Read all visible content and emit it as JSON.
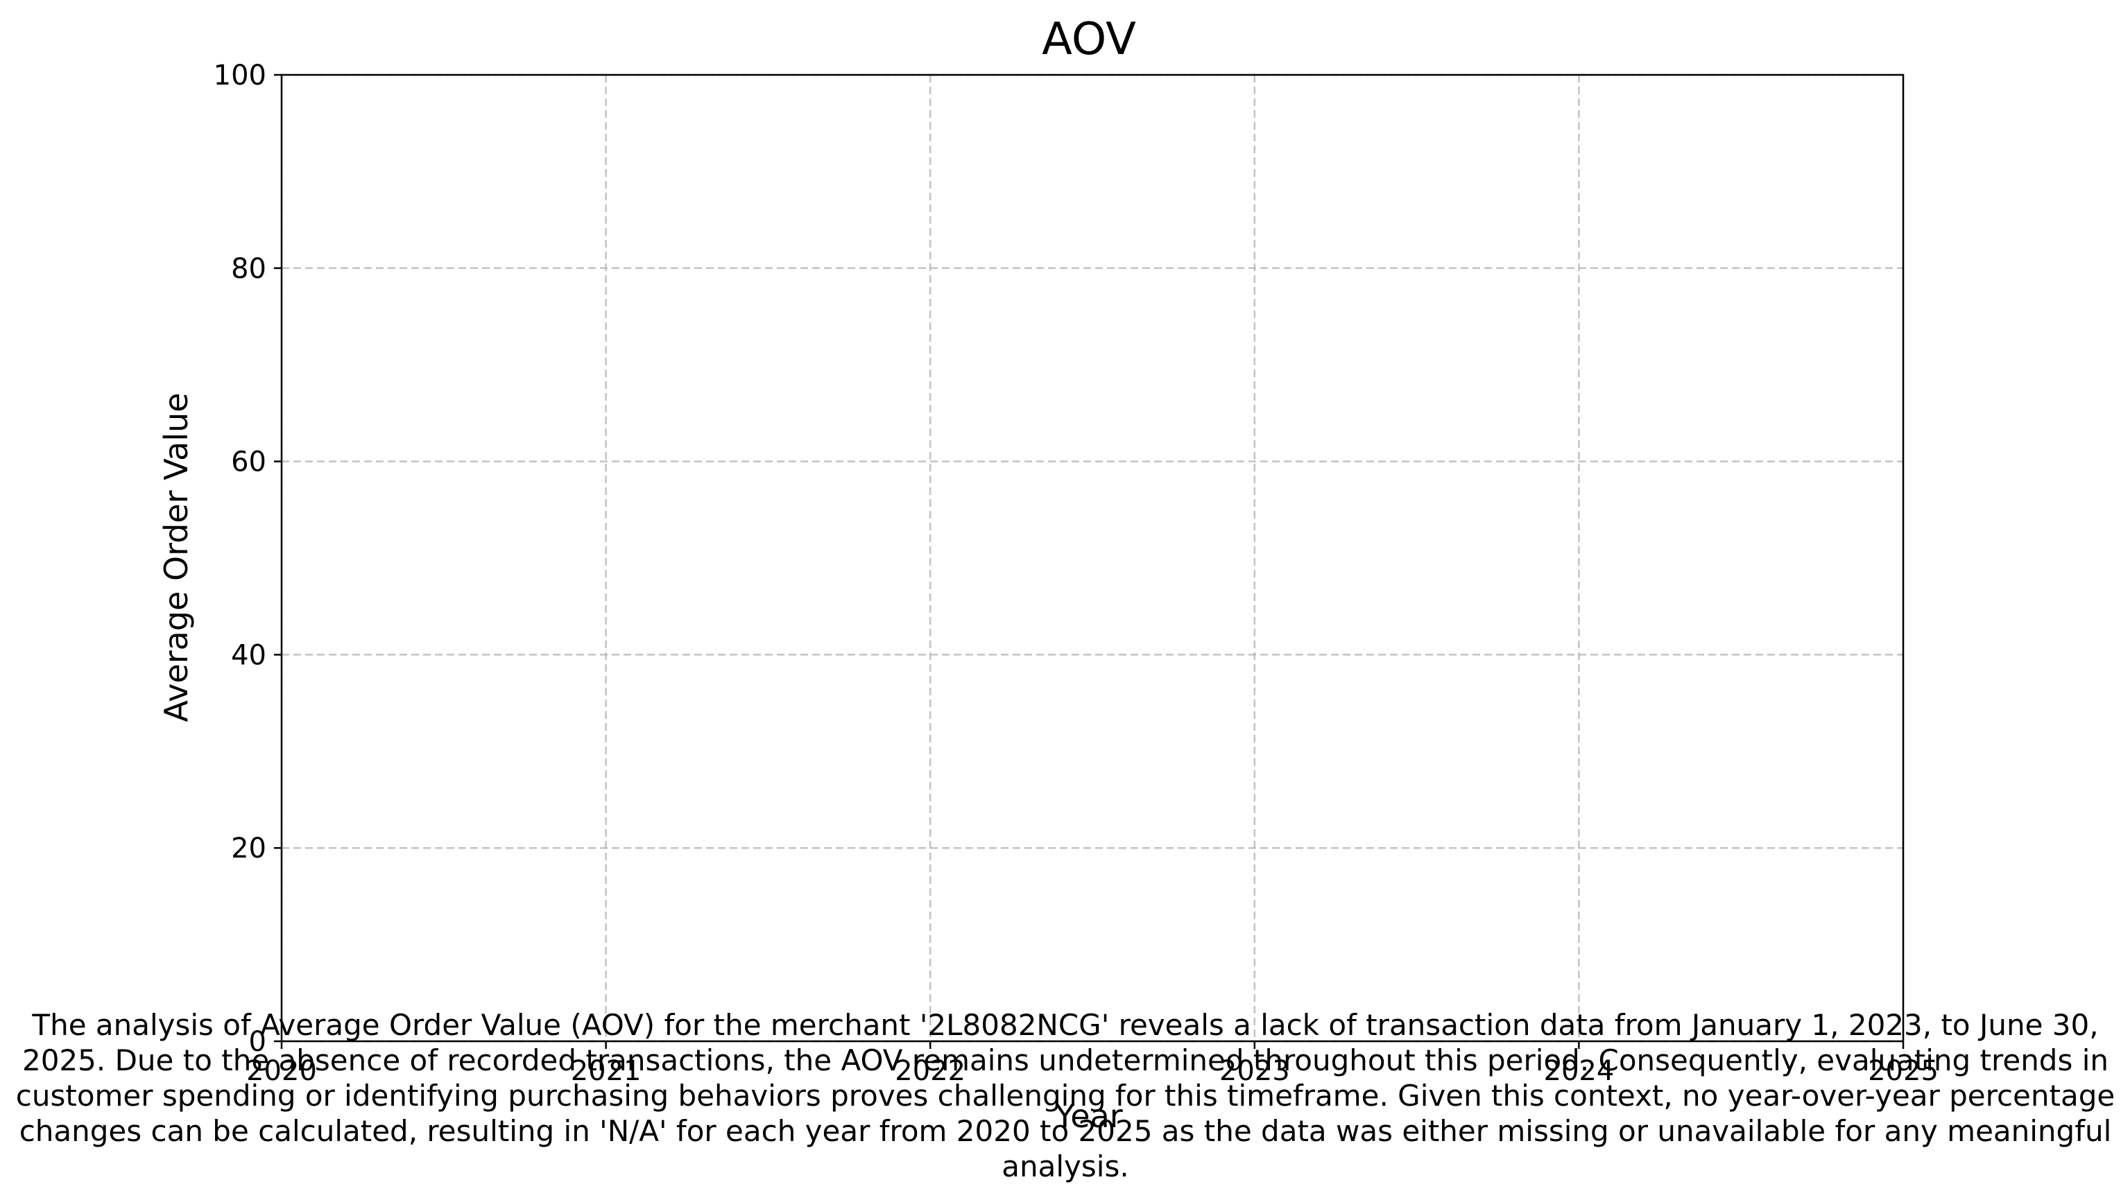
{
  "chart_data": {
    "type": "line",
    "title": "AOV",
    "xlabel": "Year",
    "ylabel": "Average Order Value",
    "x_ticks": [
      "2020",
      "2021",
      "2022",
      "2023",
      "2024",
      "2025"
    ],
    "y_ticks": [
      "0",
      "20",
      "40",
      "60",
      "80",
      "100"
    ],
    "xlim": [
      2020,
      2025
    ],
    "ylim": [
      0,
      100
    ],
    "grid": true,
    "series": [],
    "caption_lines": [
      "The analysis of Average Order Value (AOV) for the merchant '2L8082NCG' reveals a lack of transaction data from January 1, 2023, to June 30,",
      "2025. Due to the absence of recorded transactions, the AOV remains undetermined throughout this period. Consequently, evaluating trends in",
      "customer spending or identifying purchasing behaviors proves challenging for this timeframe. Given this context, no year-over-year percentage",
      "changes can be calculated, resulting in 'N/A' for each year from 2020 to 2025 as the data was either missing or unavailable for any meaningful",
      "analysis."
    ]
  }
}
